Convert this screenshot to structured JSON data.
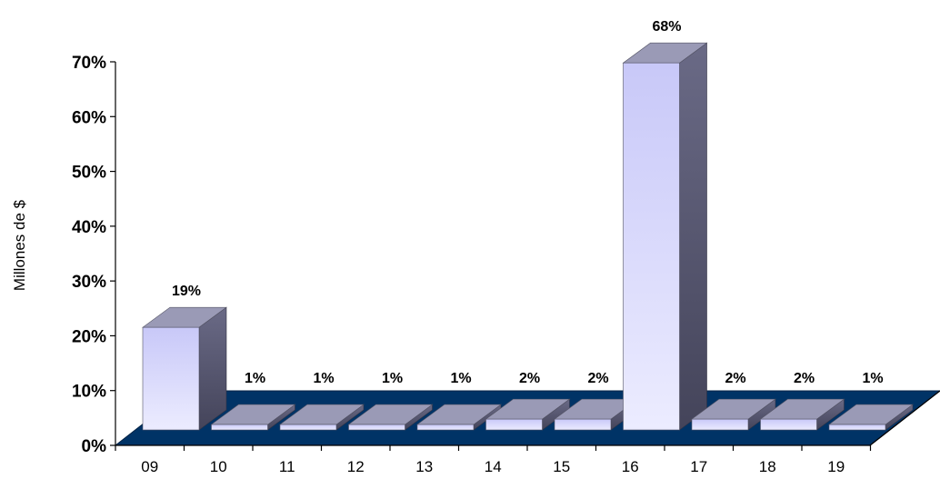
{
  "chart_data": {
    "type": "bar",
    "ylabel": "Millones de $",
    "categories": [
      "09",
      "10",
      "11",
      "12",
      "13",
      "14",
      "15",
      "16",
      "17",
      "18",
      "19"
    ],
    "values": [
      19,
      1,
      1,
      1,
      1,
      2,
      2,
      68,
      2,
      2,
      1
    ],
    "data_labels": [
      "19%",
      "1%",
      "1%",
      "1%",
      "1%",
      "2%",
      "2%",
      "68%",
      "2%",
      "2%",
      "1%"
    ],
    "yticks": [
      "0%",
      "10%",
      "20%",
      "30%",
      "40%",
      "50%",
      "60%",
      "70%"
    ],
    "ylim": [
      0,
      70
    ],
    "grid": false,
    "legend": "none",
    "style": "3d-column",
    "colors": {
      "floor": "#003366",
      "bar_front_top": "#c8c8f8",
      "bar_front_bottom": "#eaeaff",
      "bar_top": "#9a9ab6",
      "bar_side": "#5a5a74"
    }
  }
}
